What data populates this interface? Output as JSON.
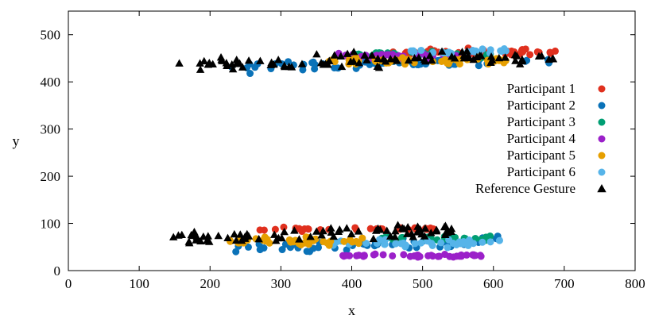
{
  "chart_data": {
    "type": "scatter",
    "title": "",
    "xlabel": "x",
    "ylabel": "y",
    "xlim": [
      0,
      800
    ],
    "ylim": [
      0,
      550
    ],
    "xticks": [
      0,
      100,
      200,
      300,
      400,
      500,
      600,
      700,
      800
    ],
    "yticks": [
      0,
      100,
      200,
      300,
      400,
      500
    ],
    "grid": false,
    "legend_position": "right",
    "series": [
      {
        "name": "Participant 1",
        "color": "#e0301e",
        "marker": "circle",
        "clusters": [
          {
            "x_range": [
              440,
              690
            ],
            "y_center": 462,
            "y_spread": 12,
            "count": 45
          },
          {
            "x_range": [
              270,
              520
            ],
            "y_center": 88,
            "y_spread": 6,
            "count": 30
          }
        ]
      },
      {
        "name": "Participant 2",
        "color": "#0a72b8",
        "marker": "circle",
        "clusters": [
          {
            "x_range": [
              210,
              690
            ],
            "y_center": 438,
            "y_spread": 16,
            "count": 60
          },
          {
            "x_range": [
              230,
              615
            ],
            "y_center": 55,
            "y_spread": 15,
            "count": 45
          }
        ]
      },
      {
        "name": "Participant 3",
        "color": "#009e73",
        "marker": "circle",
        "clusters": [
          {
            "x_range": [
              400,
              600
            ],
            "y_center": 460,
            "y_spread": 12,
            "count": 30
          },
          {
            "x_range": [
              440,
              600
            ],
            "y_center": 68,
            "y_spread": 8,
            "count": 30
          }
        ]
      },
      {
        "name": "Participant 4",
        "color": "#9b20c9",
        "marker": "circle",
        "clusters": [
          {
            "x_range": [
              380,
              570
            ],
            "y_center": 455,
            "y_spread": 10,
            "count": 35
          },
          {
            "x_range": [
              380,
              590
            ],
            "y_center": 32,
            "y_spread": 4,
            "count": 40
          }
        ]
      },
      {
        "name": "Participant 5",
        "color": "#e69f00",
        "marker": "circle",
        "clusters": [
          {
            "x_range": [
              360,
              625
            ],
            "y_center": 445,
            "y_spread": 10,
            "count": 55
          },
          {
            "x_range": [
              225,
              420
            ],
            "y_center": 62,
            "y_spread": 12,
            "count": 45
          }
        ]
      },
      {
        "name": "Participant 6",
        "color": "#56b4e9",
        "marker": "circle",
        "clusters": [
          {
            "x_range": [
              470,
              620
            ],
            "y_center": 465,
            "y_spread": 8,
            "count": 25
          },
          {
            "x_range": [
              350,
              610
            ],
            "y_center": 58,
            "y_spread": 12,
            "count": 35
          }
        ]
      },
      {
        "name": "Reference Gesture",
        "color": "#000000",
        "marker": "triangle",
        "clusters": [
          {
            "x_range": [
              155,
              690
            ],
            "y_center": 445,
            "y_spread": 22,
            "count": 90
          },
          {
            "x_range": [
              145,
              550
            ],
            "y_center": 75,
            "y_spread": 20,
            "count": 80
          }
        ]
      }
    ]
  }
}
